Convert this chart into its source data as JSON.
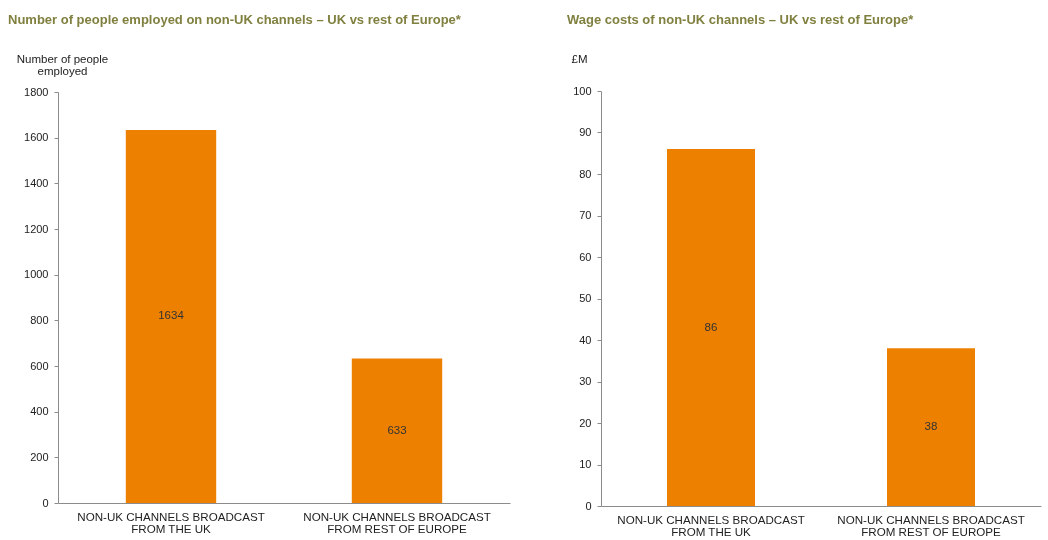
{
  "chart_data": [
    {
      "type": "bar",
      "title": "Number of people employed on non-UK channels – UK vs rest of Europe*",
      "ylabel": "Number of people employed",
      "categories": [
        "NON-UK CHANNELS BROADCAST FROM THE UK",
        "NON-UK CHANNELS BROADCAST FROM REST OF EUROPE"
      ],
      "values": [
        1634,
        633
      ],
      "color": "#ee8000",
      "ylim": [
        0,
        1800
      ],
      "yticks": [
        0,
        200,
        400,
        600,
        800,
        1000,
        1200,
        1400,
        1600,
        1800
      ],
      "data_labels": true
    },
    {
      "type": "bar",
      "title": "Wage costs of non-UK channels – UK vs rest of Europe*",
      "ylabel": "£M",
      "categories": [
        "NON-UK CHANNELS BROADCAST FROM THE UK",
        "NON-UK CHANNELS BROADCAST FROM REST OF EUROPE"
      ],
      "values": [
        86,
        38
      ],
      "color": "#ee8000",
      "ylim": [
        0,
        100
      ],
      "yticks": [
        0,
        10,
        20,
        30,
        40,
        50,
        60,
        70,
        80,
        90,
        100
      ],
      "data_labels": true
    }
  ]
}
